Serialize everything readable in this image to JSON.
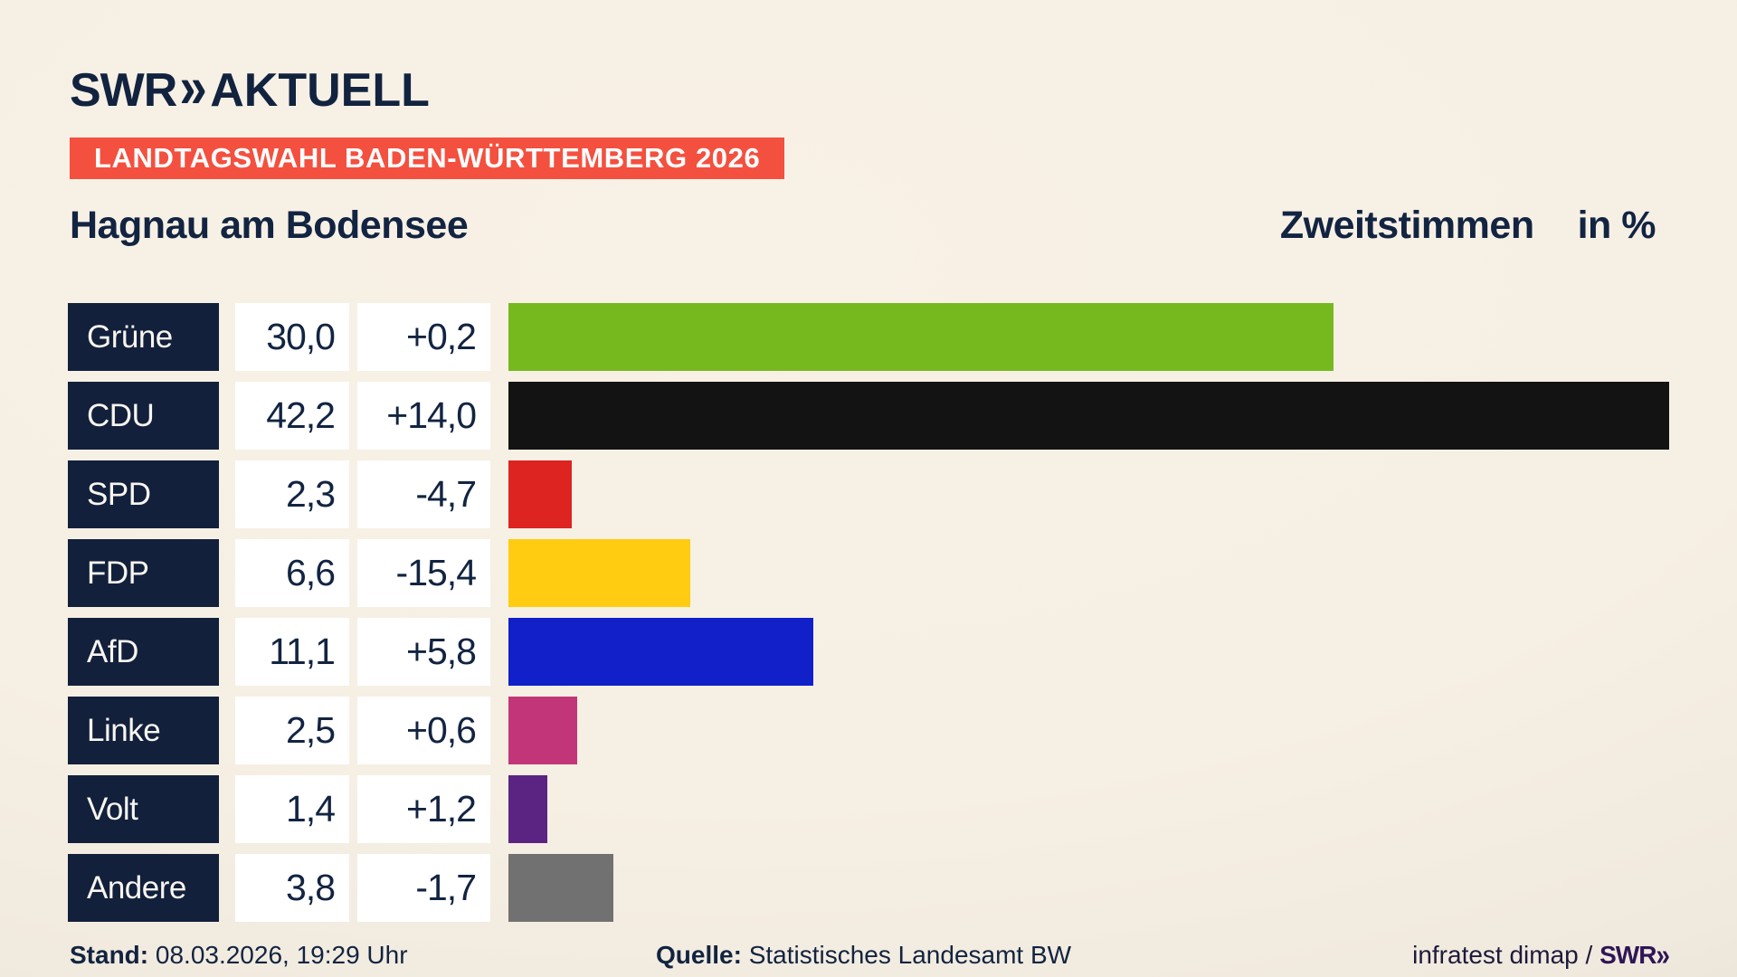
{
  "brand": {
    "swr": "SWR",
    "chevrons": "»",
    "product": "AKTUELL"
  },
  "banner": {
    "text": "LANDTAGSWAHL BADEN-WÜRTTEMBERG 2026",
    "bg_color": "#f4503f"
  },
  "header": {
    "title": "Hagnau am Bodensee",
    "vote_type": "Zweitstimmen",
    "unit": "in %"
  },
  "chart_data": {
    "type": "bar",
    "title": "Landtagswahl Baden-Württemberg 2026 — Hagnau am Bodensee — Zweitstimmen in %",
    "categories": [
      "Grüne",
      "CDU",
      "SPD",
      "FDP",
      "AfD",
      "Linke",
      "Volt",
      "Andere"
    ],
    "values": [
      30.0,
      42.2,
      2.3,
      6.6,
      11.1,
      2.5,
      1.4,
      3.8
    ],
    "value_labels": [
      "30,0",
      "42,2",
      "2,3",
      "6,6",
      "11,1",
      "2,5",
      "1,4",
      "3,8"
    ],
    "change_values": [
      0.2,
      14.0,
      -4.7,
      -15.4,
      5.8,
      0.6,
      1.2,
      -1.7
    ],
    "change_labels": [
      "+0,2",
      "+14,0",
      "-4,7",
      "-15,4",
      "+5,8",
      "+0,6",
      "+1,2",
      "-1,7"
    ],
    "bar_colors": [
      "#76b91e",
      "#131313",
      "#dd2421",
      "#ffcc11",
      "#1120c8",
      "#c23679",
      "#5c2482",
      "#717171"
    ],
    "xlim": [
      0,
      42.2
    ],
    "orientation": "horizontal",
    "grid": false,
    "legend": "none"
  },
  "colors": {
    "party_box_bg": "#12203c",
    "text_navy": "#122441",
    "background_cream": "#f6efe3"
  },
  "footer": {
    "stand_label": "Stand:",
    "stand_value": "08.03.2026, 19:29 Uhr",
    "quelle_label": "Quelle:",
    "quelle_value": "Statistisches Landesamt BW",
    "credit_text": "infratest dimap /",
    "credit_logo_swr": "SWR",
    "credit_logo_chevrons": "»"
  }
}
